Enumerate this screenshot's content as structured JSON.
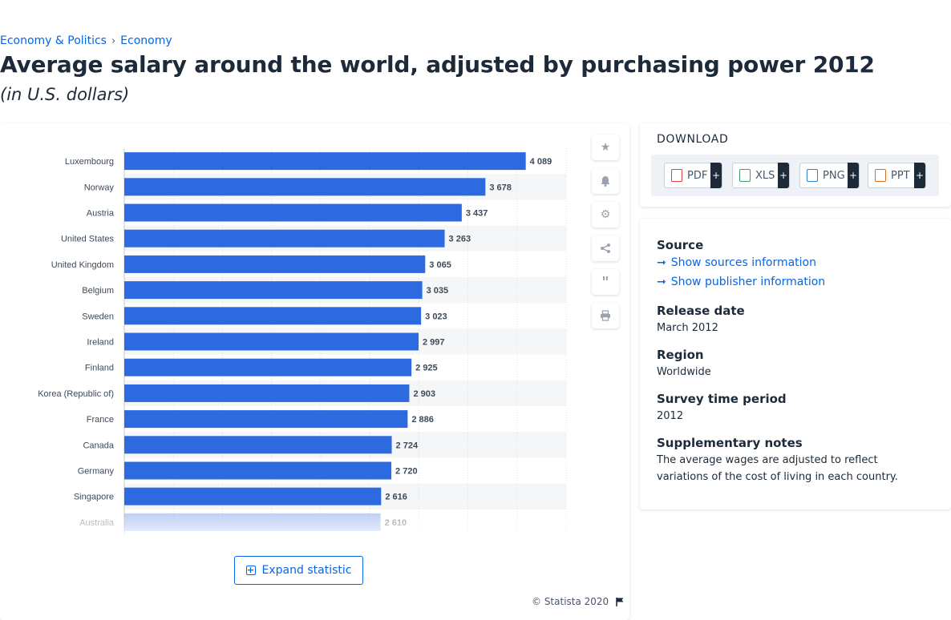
{
  "breadcrumb": {
    "item1": "Economy & Politics",
    "sep": "›",
    "item2": "Economy"
  },
  "title": "Average salary around the world, adjusted by purchasing power 2012",
  "subtitle": "(in U.S. dollars)",
  "chart_data": {
    "type": "bar",
    "orientation": "horizontal",
    "categories": [
      "Luxembourg",
      "Norway",
      "Austria",
      "United States",
      "United Kingdom",
      "Belgium",
      "Sweden",
      "Ireland",
      "Finland",
      "Korea (Republic of)",
      "France",
      "Canada",
      "Germany",
      "Singapore",
      "Australia"
    ],
    "values": [
      4089,
      3678,
      3437,
      3263,
      3065,
      3035,
      3023,
      2997,
      2925,
      2903,
      2886,
      2724,
      2720,
      2616,
      2610
    ],
    "value_labels": [
      "4 089",
      "3 678",
      "3 437",
      "3 263",
      "3 065",
      "3 035",
      "3 023",
      "2 997",
      "2 925",
      "2 903",
      "2 886",
      "2 724",
      "2 720",
      "2 616",
      "2 610"
    ],
    "xlim": [
      0,
      4500
    ],
    "grid": true,
    "bar_color": "#2d6ae0",
    "faded_last_row": true
  },
  "toolbar": {
    "icons": [
      "star-icon",
      "bell-icon",
      "gear-icon",
      "share-icon",
      "quote-icon",
      "print-icon"
    ]
  },
  "expand_label": "Expand statistic",
  "copyright": "© Statista 2020",
  "download": {
    "title": "DOWNLOAD",
    "buttons": [
      {
        "label": "PDF",
        "color": "#e53e3e"
      },
      {
        "label": "XLS",
        "color": "#38a169"
      },
      {
        "label": "PNG",
        "color": "#3182ce"
      },
      {
        "label": "PPT",
        "color": "#dd6b20"
      }
    ],
    "plus": "+"
  },
  "info": {
    "source_heading": "Source",
    "show_sources": "Show sources information",
    "show_publisher": "Show publisher information",
    "release_heading": "Release date",
    "release_value": "March 2012",
    "region_heading": "Region",
    "region_value": "Worldwide",
    "period_heading": "Survey time period",
    "period_value": "2012",
    "notes_heading": "Supplementary notes",
    "notes_value": "The average wages are adjusted to reflect variations of the cost of living in each country."
  }
}
